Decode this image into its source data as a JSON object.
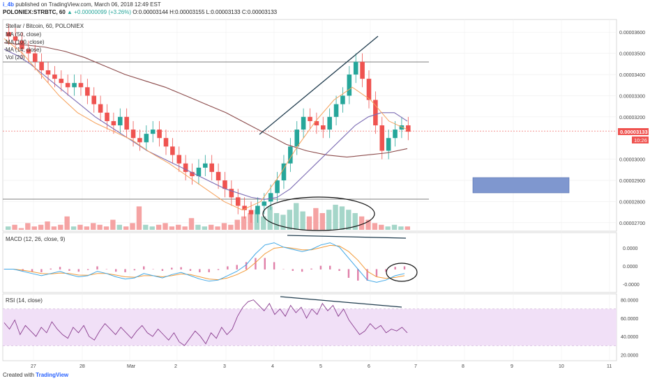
{
  "header": {
    "author": "i_4b",
    "published_text": "published on TradingView.com, March 06, 2018 12:49 EST",
    "symbol": "POLONIEX:STRBTC, 60",
    "change": "▲ +0.00000099 (+3.26%)",
    "ohlc": "O:0.00003144 H:0.00003155 L:0.00003133 C:0.00003133"
  },
  "footer": {
    "created_with": "Created with",
    "brand": "TradingView"
  },
  "colors": {
    "bull": "#26a69a",
    "bear": "#ef5350",
    "vol_bull": "#a5d6c9",
    "vol_bear": "#f5a3a3",
    "ma50": "#f6a15a",
    "ma100": "#7b6bb3",
    "ma200": "#8b4a4a",
    "macd": "#3fa7e6",
    "signal": "#f29b3a",
    "rsi": "#8a3d8f",
    "rsi_band": "#f1e0f7",
    "box": "#7f97cf",
    "price_tag": "#ef5350"
  },
  "chart_data": [
    {
      "type": "candlestick",
      "title": "Stellar / Bitcoin, 60, POLONIEX",
      "legend": [
        "MA (50, close)",
        "MA (100, close)",
        "MA (14, close)",
        "Vol (20)"
      ],
      "x_ticks": [
        "27",
        "28",
        "Mar",
        "2",
        "3",
        "4",
        "5",
        "6",
        "7",
        "8",
        "9",
        "10",
        "11"
      ],
      "y_ticks": [
        "0.00003600",
        "0.00003500",
        "0.00003400",
        "0.00003300",
        "0.00003200",
        "0.00003000",
        "0.00002900",
        "0.00002800",
        "0.00002700"
      ],
      "ylim": [
        2.66e-05,
        3.66e-05
      ],
      "last_price": "0.00003133",
      "last_price_value": 3.133e-05,
      "countdown": "10:26",
      "close_series": [
        3.58,
        3.56,
        3.52,
        3.5,
        3.46,
        3.42,
        3.4,
        3.38,
        3.36,
        3.34,
        3.36,
        3.34,
        3.3,
        3.26,
        3.22,
        3.18,
        3.16,
        3.2,
        3.14,
        3.1,
        3.08,
        3.12,
        3.14,
        3.1,
        3.06,
        3.02,
        2.98,
        2.94,
        2.92,
        2.96,
        2.98,
        2.94,
        2.9,
        2.86,
        2.82,
        2.78,
        2.76,
        2.74,
        2.78,
        2.8,
        2.84,
        2.9,
        2.98,
        3.06,
        3.14,
        3.2,
        3.18,
        3.16,
        3.14,
        3.2,
        3.26,
        3.3,
        3.4,
        3.46,
        3.38,
        3.28,
        3.16,
        3.04,
        3.1,
        3.14,
        3.16,
        3.13
      ],
      "ma50_series": [
        3.52,
        3.49,
        3.45,
        3.4,
        3.35,
        3.3,
        3.25,
        3.2,
        3.16,
        3.12,
        3.08,
        3.04,
        3.01,
        2.98,
        2.95,
        2.92,
        2.89,
        2.86,
        2.84,
        2.82,
        2.81,
        2.82,
        2.86,
        2.92,
        2.98,
        3.04,
        3.1,
        3.16,
        3.2,
        3.22,
        3.22,
        3.18
      ],
      "ma100_series": [
        3.55,
        3.54,
        3.53,
        3.51,
        3.48,
        3.44,
        3.4,
        3.37,
        3.34,
        3.3,
        3.26,
        3.22,
        3.17,
        3.12,
        3.07,
        3.04,
        3.02,
        3.01,
        3.02,
        3.03,
        3.05
      ],
      "ma14_series": [
        3.57,
        3.5,
        3.4,
        3.3,
        3.22,
        3.17,
        3.13,
        3.09,
        3.03,
        2.98,
        2.92,
        2.86,
        2.8,
        2.76,
        2.8,
        2.92,
        3.06,
        3.18,
        3.28,
        3.34,
        3.28,
        3.18,
        3.14
      ],
      "volume_series": [
        2,
        3,
        1,
        4,
        2,
        3,
        5,
        2,
        3,
        8,
        2,
        3,
        2,
        4,
        3,
        2,
        6,
        3,
        2,
        4,
        14,
        3,
        2,
        3,
        4,
        2,
        3,
        2,
        7,
        3,
        2,
        3,
        2,
        4,
        3,
        6,
        8,
        10,
        12,
        8,
        14,
        10,
        9,
        12,
        16,
        11,
        8,
        13,
        10,
        12,
        15,
        14,
        12,
        10,
        8,
        6,
        4,
        3,
        2,
        3,
        2,
        2
      ]
    },
    {
      "type": "line",
      "title": "MACD (12, 26, close, 9)",
      "y_ticks": [
        "0.0000",
        "0.0000",
        "-0.0000"
      ],
      "macd_series": [
        0.0,
        0.0,
        -0.1,
        -0.2,
        -0.3,
        -0.2,
        -0.1,
        -0.25,
        -0.35,
        -0.3,
        -0.1,
        -0.2,
        -0.35,
        -0.45,
        -0.4,
        -0.2,
        -0.3,
        -0.4,
        -0.25,
        -0.15,
        -0.3,
        -0.45,
        -0.55,
        -0.5,
        -0.3,
        -0.1,
        0.2,
        0.7,
        1.1,
        1.2,
        1.0,
        0.9,
        0.8,
        0.9,
        1.1,
        1.2,
        1.0,
        0.5,
        0.0,
        -0.5,
        -0.6,
        -0.5,
        -0.3,
        -0.2
      ],
      "signal_series": [
        0.0,
        0.0,
        -0.05,
        -0.12,
        -0.2,
        -0.22,
        -0.18,
        -0.2,
        -0.27,
        -0.28,
        -0.2,
        -0.2,
        -0.27,
        -0.35,
        -0.37,
        -0.3,
        -0.3,
        -0.35,
        -0.3,
        -0.22,
        -0.25,
        -0.35,
        -0.45,
        -0.48,
        -0.4,
        -0.25,
        -0.05,
        0.3,
        0.7,
        0.95,
        1.0,
        0.95,
        0.88,
        0.88,
        0.98,
        1.08,
        1.05,
        0.8,
        0.4,
        -0.1,
        -0.35,
        -0.42,
        -0.38,
        -0.3
      ],
      "ylim": [
        -1.0,
        1.6
      ]
    },
    {
      "type": "line",
      "title": "RSI (14, close)",
      "y_ticks": [
        "80.0000",
        "60.0000",
        "40.0000",
        "20.0000"
      ],
      "ylim": [
        15,
        85
      ],
      "band": [
        30,
        70
      ],
      "rsi_series": [
        55,
        48,
        58,
        42,
        52,
        46,
        40,
        50,
        44,
        56,
        48,
        42,
        38,
        50,
        44,
        52,
        40,
        36,
        46,
        54,
        48,
        42,
        50,
        44,
        38,
        46,
        52,
        44,
        40,
        48,
        42,
        36,
        44,
        34,
        30,
        38,
        46,
        40,
        32,
        44,
        38,
        50,
        42,
        48,
        62,
        72,
        78,
        80,
        74,
        68,
        76,
        64,
        70,
        62,
        74,
        66,
        72,
        60,
        70,
        64,
        76,
        68,
        74,
        62,
        70,
        58,
        50,
        42,
        46,
        54,
        48,
        52,
        44,
        48,
        46,
        50,
        44
      ],
      "rsi_x_start": 0
    }
  ]
}
